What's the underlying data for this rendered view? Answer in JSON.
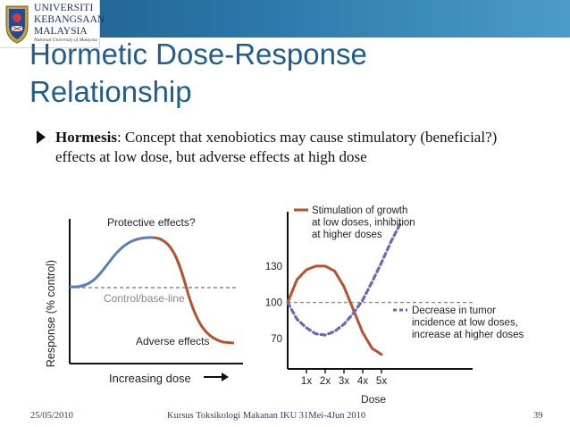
{
  "logo": {
    "line1": "UNIVERSITI",
    "line2": "KEBANGSAAN",
    "line3": "MALAYSIA",
    "line4": "National University of Malaysia"
  },
  "slide": {
    "title_line1": "Hormetic Dose-Response",
    "title_line2": "Relationship",
    "bullet_term": "Hormesis",
    "bullet_rest": ": Concept that xenobiotics may cause stimulatory (beneficial?) effects at low dose, but adverse effects at high dose"
  },
  "figure_left": {
    "ylabel": "Response (% control)",
    "xlabel": "Increasing dose",
    "label_protective": "Protective effects?",
    "label_baseline": "Control/base-line",
    "label_adverse": "Adverse effects"
  },
  "chart_data": {
    "type": "line",
    "xlabel": "Dose",
    "x_ticks": [
      "1x",
      "2x",
      "3x",
      "4x",
      "5x"
    ],
    "y_ticks": [
      70,
      100,
      130
    ],
    "ylim": [
      45,
      175
    ],
    "baseline": 100,
    "series": [
      {
        "name": "Stimulation of growth at low doses, inhibition at higher doses",
        "style": "solid",
        "color": "#b5512e",
        "x": [
          0,
          0.5,
          1,
          1.5,
          2,
          2.5,
          3,
          3.5,
          4,
          4.5,
          5
        ],
        "y": [
          100,
          119,
          127,
          130,
          130,
          126,
          113,
          94,
          75,
          62,
          57
        ]
      },
      {
        "name": "Decrease in tumor incidence at low doses, increase at higher doses",
        "style": "dashed",
        "color": "#6b68b5",
        "x": [
          0,
          0.5,
          1,
          1.5,
          2,
          2.5,
          3,
          3.5,
          4,
          4.5,
          5,
          5.5,
          6
        ],
        "y": [
          100,
          86,
          79,
          74,
          73,
          76,
          82,
          91,
          102,
          117,
          133,
          150,
          165
        ]
      }
    ]
  },
  "footer": {
    "date": "25/05/2010",
    "center": "Kursus Toksikologi Makanan IKU 31Mei-4Jun 2010",
    "page": "39"
  },
  "colors": {
    "title": "#1f5d8c",
    "band": "#2a78a8",
    "curve_solid": "#b5512e",
    "curve_dashed": "#6b68b5",
    "left_curve_up": "#5a7fb8"
  }
}
